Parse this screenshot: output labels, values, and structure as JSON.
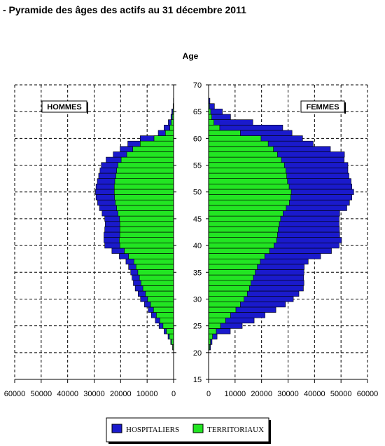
{
  "title": "- Pyramide des âges des actifs au 31 décembre 2011",
  "chart_data": {
    "type": "bar",
    "orientation": "horizontal-pyramid",
    "y_axis_label": "Age",
    "y_range": [
      15,
      70
    ],
    "y_ticks": [
      "15",
      "20",
      "25",
      "30",
      "35",
      "40",
      "45",
      "50",
      "55",
      "60",
      "65",
      "70"
    ],
    "left_panel": {
      "label": "HOMMES",
      "x_range": [
        60000,
        0
      ],
      "x_ticks": [
        "60000",
        "50000",
        "40000",
        "30000",
        "20000",
        "10000",
        "0"
      ]
    },
    "right_panel": {
      "label": "FEMMES",
      "x_range": [
        0,
        60000
      ],
      "x_ticks": [
        "0",
        "10000",
        "20000",
        "30000",
        "40000",
        "50000",
        "60000"
      ]
    },
    "grid": true,
    "stacked": true,
    "series": [
      {
        "name": "HOSPITALIERS",
        "color": "#1a1acc"
      },
      {
        "name": "TERRITORIAUX",
        "color": "#22e522"
      }
    ],
    "ages": [
      21,
      22,
      23,
      24,
      25,
      26,
      27,
      28,
      29,
      30,
      31,
      32,
      33,
      34,
      35,
      36,
      37,
      38,
      39,
      40,
      41,
      42,
      43,
      44,
      45,
      46,
      47,
      48,
      49,
      50,
      51,
      52,
      53,
      54,
      55,
      56,
      57,
      58,
      59,
      60,
      61,
      62,
      63,
      64,
      65,
      66,
      67
    ],
    "men_territoriaux": [
      300,
      800,
      1600,
      2700,
      4000,
      5200,
      6500,
      7600,
      8700,
      9800,
      10600,
      11600,
      12300,
      12900,
      13500,
      14200,
      15000,
      17000,
      18600,
      20300,
      20500,
      20300,
      20300,
      20300,
      20400,
      21000,
      21500,
      22000,
      22300,
      22400,
      22400,
      22200,
      21800,
      21500,
      21000,
      19800,
      17700,
      15400,
      12600,
      7400,
      3100,
      1400,
      900,
      500,
      300,
      100,
      50
    ],
    "men_total": [
      400,
      1100,
      2100,
      3600,
      5500,
      6900,
      8400,
      9600,
      11000,
      12500,
      13400,
      14500,
      15200,
      15700,
      16200,
      17000,
      18000,
      20500,
      23300,
      26000,
      26300,
      26300,
      26000,
      25800,
      26000,
      27000,
      28000,
      28700,
      29300,
      29500,
      29300,
      28800,
      28300,
      27800,
      27300,
      25500,
      22800,
      20200,
      17300,
      12600,
      5800,
      3600,
      2000,
      1000,
      700,
      200,
      100
    ],
    "women_territoriaux": [
      400,
      700,
      1500,
      2900,
      4500,
      6400,
      8300,
      10300,
      12000,
      13400,
      14600,
      15400,
      16000,
      16900,
      17600,
      18400,
      19500,
      21200,
      23000,
      24700,
      25700,
      26000,
      26300,
      26700,
      27200,
      28100,
      29300,
      30500,
      31000,
      31200,
      30400,
      29800,
      29500,
      29200,
      28600,
      27500,
      26000,
      24500,
      22500,
      19800,
      12000,
      4200,
      2000,
      1200,
      800,
      300,
      100
    ],
    "women_total": [
      700,
      1300,
      3200,
      8200,
      12700,
      17200,
      21300,
      25400,
      29000,
      32000,
      34100,
      35800,
      36000,
      35900,
      36000,
      36100,
      37600,
      42300,
      46400,
      49300,
      50200,
      49500,
      49400,
      49300,
      49300,
      49500,
      52200,
      53200,
      54100,
      54800,
      54100,
      53800,
      53000,
      52600,
      52600,
      51200,
      51300,
      46000,
      39500,
      35500,
      31500,
      28000,
      16700,
      8300,
      5200,
      2200,
      500
    ]
  }
}
